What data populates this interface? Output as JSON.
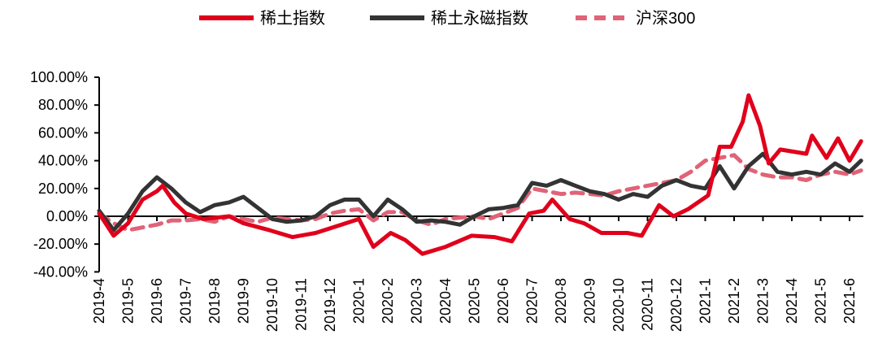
{
  "chart_data": {
    "type": "line",
    "title": "",
    "xlabel": "",
    "ylabel": "",
    "ylim": [
      -40,
      100
    ],
    "yticks": [
      "100.00%",
      "80.00%",
      "60.00%",
      "40.00%",
      "20.00%",
      "0.00%",
      "-20.00%",
      "-40.00%"
    ],
    "ytick_values": [
      100,
      80,
      60,
      40,
      20,
      0,
      -20,
      -40
    ],
    "xticks": [
      "2019-4",
      "2019-5",
      "2019-6",
      "2019-7",
      "2019-8",
      "2019-9",
      "2019-10",
      "2019-11",
      "2019-12",
      "2020-1",
      "2020-2",
      "2020-3",
      "2020-4",
      "2020-5",
      "2020-6",
      "2020-7",
      "2020-8",
      "2020-9",
      "2020-10",
      "2020-11",
      "2020-12",
      "2021-1",
      "2021-2",
      "2021-3",
      "2021-4",
      "2021-5",
      "2021-6"
    ],
    "legend_position": "top",
    "grid": false,
    "series": [
      {
        "name": "稀土指数",
        "color": "#e0001b",
        "style": "solid",
        "x": [
          "2019-04-01",
          "2019-04-16",
          "2019-05-01",
          "2019-05-16",
          "2019-06-01",
          "2019-06-07",
          "2019-06-19",
          "2019-07-01",
          "2019-07-19",
          "2019-08-16",
          "2019-09-01",
          "2019-09-28",
          "2019-10-22",
          "2019-11-16",
          "2019-12-13",
          "2020-01-01",
          "2020-01-16",
          "2020-02-04",
          "2020-02-19",
          "2020-03-07",
          "2020-04-01",
          "2020-04-28",
          "2020-05-22",
          "2020-06-10",
          "2020-06-28",
          "2020-07-13",
          "2020-07-22",
          "2020-08-10",
          "2020-08-25",
          "2020-09-13",
          "2020-10-10",
          "2020-10-25",
          "2020-11-13",
          "2020-11-28",
          "2020-12-13",
          "2021-01-04",
          "2021-01-16",
          "2021-01-28",
          "2021-02-10",
          "2021-02-16",
          "2021-02-28",
          "2021-03-07",
          "2021-03-19",
          "2021-04-16",
          "2021-04-22",
          "2021-05-07",
          "2021-05-19",
          "2021-06-01",
          "2021-06-13"
        ],
        "values": [
          2,
          -14,
          -5,
          12,
          18,
          22,
          10,
          2,
          -2,
          0,
          -5,
          -10,
          -15,
          -12,
          -6,
          -2,
          -22,
          -12,
          -17,
          -27,
          -22,
          -14,
          -15,
          -18,
          2,
          4,
          12,
          -2,
          -5,
          -12,
          -12,
          -14,
          8,
          0,
          5,
          15,
          50,
          50,
          68,
          87,
          65,
          38,
          48,
          45,
          58,
          42,
          56,
          40,
          54
        ]
      },
      {
        "name": "稀土永磁指数",
        "color": "#333333",
        "style": "solid",
        "x": [
          "2019-04-01",
          "2019-04-16",
          "2019-05-01",
          "2019-05-16",
          "2019-06-01",
          "2019-06-16",
          "2019-07-01",
          "2019-07-16",
          "2019-08-01",
          "2019-08-16",
          "2019-09-01",
          "2019-09-16",
          "2019-10-01",
          "2019-10-16",
          "2019-11-01",
          "2019-11-16",
          "2019-12-01",
          "2019-12-16",
          "2020-01-01",
          "2020-01-16",
          "2020-02-01",
          "2020-02-16",
          "2020-03-01",
          "2020-03-16",
          "2020-04-01",
          "2020-04-16",
          "2020-05-01",
          "2020-05-16",
          "2020-06-01",
          "2020-06-16",
          "2020-07-01",
          "2020-07-16",
          "2020-08-01",
          "2020-08-16",
          "2020-09-01",
          "2020-09-16",
          "2020-10-01",
          "2020-10-16",
          "2020-11-01",
          "2020-11-16",
          "2020-12-01",
          "2020-12-16",
          "2021-01-01",
          "2021-01-16",
          "2021-02-01",
          "2021-02-16",
          "2021-03-01",
          "2021-03-16",
          "2021-04-01",
          "2021-04-16",
          "2021-05-01",
          "2021-05-16",
          "2021-06-01",
          "2021-06-13"
        ],
        "values": [
          4,
          -10,
          2,
          18,
          28,
          20,
          10,
          3,
          8,
          10,
          14,
          6,
          -2,
          -4,
          -3,
          0,
          8,
          12,
          12,
          0,
          12,
          5,
          -4,
          -3,
          -4,
          -6,
          0,
          5,
          6,
          8,
          24,
          22,
          26,
          22,
          18,
          16,
          12,
          16,
          14,
          22,
          26,
          22,
          20,
          36,
          20,
          36,
          45,
          32,
          30,
          32,
          30,
          38,
          32,
          40
        ]
      },
      {
        "name": "沪深300",
        "color": "#e06377",
        "style": "dashed",
        "x": [
          "2019-04-01",
          "2019-04-16",
          "2019-05-01",
          "2019-05-16",
          "2019-06-01",
          "2019-06-16",
          "2019-07-01",
          "2019-07-16",
          "2019-08-01",
          "2019-08-16",
          "2019-09-01",
          "2019-09-16",
          "2019-10-01",
          "2019-10-16",
          "2019-11-01",
          "2019-11-16",
          "2019-12-01",
          "2019-12-16",
          "2020-01-01",
          "2020-01-16",
          "2020-02-01",
          "2020-02-16",
          "2020-03-01",
          "2020-03-16",
          "2020-04-01",
          "2020-04-16",
          "2020-05-01",
          "2020-05-16",
          "2020-06-01",
          "2020-06-16",
          "2020-07-01",
          "2020-07-16",
          "2020-08-01",
          "2020-08-16",
          "2020-09-01",
          "2020-09-16",
          "2020-10-01",
          "2020-10-16",
          "2020-11-01",
          "2020-11-16",
          "2020-12-01",
          "2020-12-16",
          "2021-01-01",
          "2021-01-16",
          "2021-02-01",
          "2021-02-16",
          "2021-03-01",
          "2021-03-16",
          "2021-04-01",
          "2021-04-16",
          "2021-05-01",
          "2021-05-16",
          "2021-06-01",
          "2021-06-13"
        ],
        "values": [
          2,
          -5,
          -10,
          -8,
          -6,
          -3,
          -3,
          -2,
          -4,
          0,
          -2,
          -4,
          -1,
          -2,
          -3,
          -2,
          2,
          4,
          5,
          -3,
          3,
          3,
          -3,
          -6,
          -2,
          -1,
          0,
          -2,
          2,
          6,
          20,
          18,
          16,
          17,
          16,
          15,
          18,
          20,
          22,
          24,
          26,
          32,
          40,
          42,
          44,
          34,
          30,
          28,
          28,
          26,
          30,
          32,
          30,
          33
        ]
      }
    ]
  }
}
